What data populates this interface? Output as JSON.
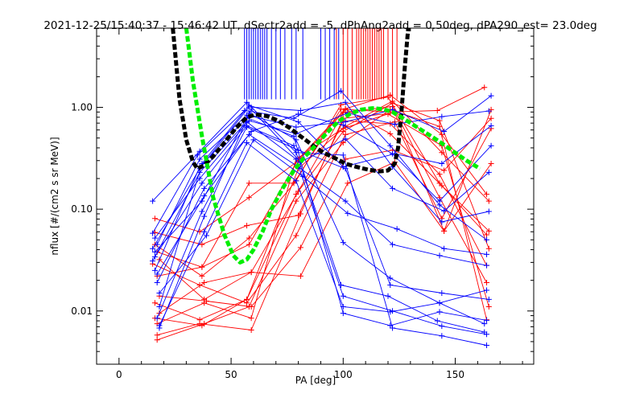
{
  "chart_data": {
    "type": "line",
    "title": "2021-12-25/15:40:37 - 15:46:42 UT, dSectr2add = -5, dPhAng2add = 0.50deg, dPA290_est=  23.0deg",
    "xlabel": "PA [deg]",
    "ylabel": "nflux [#/(cm2 s sr MeV)]",
    "xlim": [
      -10,
      185
    ],
    "ylim": [
      0.003,
      6
    ],
    "yscale": "log",
    "xticks": [
      0,
      50,
      100,
      150
    ],
    "xtick_labels": [
      "0",
      "50",
      "100",
      "150"
    ],
    "yticks": [
      0.01,
      0.1,
      1
    ],
    "ytick_labels": [
      "0.01",
      "0.10",
      "1.00"
    ],
    "colors": {
      "blue": "#0000ff",
      "red": "#ff0000",
      "fit_black": "#000000",
      "fit_green": "#00ee00"
    },
    "marker_lines": {
      "blue_x": [
        56,
        57,
        58,
        59,
        60,
        61,
        62,
        63,
        64,
        65,
        66,
        68,
        70,
        72,
        74,
        77,
        79,
        82,
        90,
        92,
        94,
        96,
        98
      ],
      "red_x": [
        97,
        100,
        102,
        104,
        106,
        107,
        108,
        109,
        110,
        111,
        112,
        113,
        114,
        115,
        116,
        117,
        118,
        120,
        122,
        124
      ],
      "y_from": 1.2,
      "y_to": 6
    },
    "fit_black": {
      "x": [
        24,
        27,
        30,
        33,
        35,
        38,
        42,
        47,
        52,
        57,
        61,
        66,
        71,
        76,
        81,
        86,
        91,
        96,
        101,
        106,
        111,
        116,
        120,
        123,
        124.5,
        126,
        127.5,
        129
      ],
      "y": [
        6,
        1.2,
        0.48,
        0.29,
        0.25,
        0.27,
        0.33,
        0.45,
        0.62,
        0.8,
        0.85,
        0.82,
        0.74,
        0.63,
        0.52,
        0.43,
        0.36,
        0.32,
        0.28,
        0.26,
        0.245,
        0.235,
        0.24,
        0.28,
        0.4,
        0.9,
        2.5,
        6
      ]
    },
    "fit_green": {
      "x": [
        30,
        33,
        37,
        42,
        47,
        51,
        54,
        57,
        60,
        64,
        68,
        73,
        78,
        83,
        88,
        93,
        98,
        103,
        108,
        113,
        118,
        122,
        126,
        131,
        137,
        143,
        149,
        155,
        161
      ],
      "y": [
        6,
        1.8,
        0.52,
        0.13,
        0.056,
        0.035,
        0.03,
        0.032,
        0.04,
        0.06,
        0.1,
        0.16,
        0.24,
        0.33,
        0.43,
        0.57,
        0.73,
        0.86,
        0.95,
        0.98,
        0.96,
        0.9,
        0.8,
        0.68,
        0.56,
        0.46,
        0.37,
        0.3,
        0.25
      ]
    },
    "blue_series": [
      {
        "x": [
          15,
          36,
          57,
          79,
          100,
          122,
          144,
          164
        ],
        "y": [
          0.12,
          0.37,
          1.12,
          0.36,
          0.34,
          0.0068,
          0.0057,
          0.0046
        ]
      },
      {
        "x": [
          15,
          36,
          57,
          79,
          100,
          122,
          144,
          164
        ],
        "y": [
          0.031,
          0.23,
          0.72,
          0.31,
          0.014,
          0.01,
          0.0071,
          0.0059
        ]
      },
      {
        "x": [
          16,
          37,
          58,
          79,
          100,
          121,
          143,
          163
        ],
        "y": [
          0.038,
          0.12,
          0.88,
          0.48,
          0.047,
          0.021,
          0.012,
          0.0075
        ]
      },
      {
        "x": [
          16,
          36,
          57,
          78,
          100,
          121,
          143,
          164
        ],
        "y": [
          0.025,
          0.26,
          0.79,
          0.52,
          0.0095,
          0.0072,
          0.0098,
          0.0081
        ]
      },
      {
        "x": [
          17,
          38,
          58,
          80,
          101,
          122,
          143,
          164
        ],
        "y": [
          0.019,
          0.16,
          0.54,
          0.26,
          0.12,
          0.045,
          0.035,
          0.028
        ]
      },
      {
        "x": [
          17,
          37,
          57,
          80,
          101,
          121,
          144,
          165
        ],
        "y": [
          0.0085,
          0.095,
          0.64,
          0.38,
          0.25,
          0.018,
          0.015,
          0.013
        ]
      },
      {
        "x": [
          18,
          38,
          59,
          81,
          101,
          122,
          145,
          165
        ],
        "y": [
          0.0068,
          0.085,
          0.96,
          0.29,
          0.49,
          0.16,
          0.096,
          0.23
        ]
      },
      {
        "x": [
          18,
          37,
          58,
          80,
          100,
          123,
          144,
          166
        ],
        "y": [
          0.011,
          0.28,
          1.05,
          0.72,
          0.26,
          0.35,
          0.28,
          0.66
        ]
      },
      {
        "x": [
          17,
          36,
          57,
          79,
          101,
          122,
          145,
          166
        ],
        "y": [
          0.045,
          0.31,
          0.84,
          0.64,
          0.72,
          0.95,
          0.58,
          1.3
        ]
      },
      {
        "x": [
          16,
          36,
          58,
          79,
          102,
          123,
          144,
          165
        ],
        "y": [
          0.052,
          0.2,
          0.74,
          0.55,
          0.88,
          0.68,
          0.81,
          0.92
        ]
      },
      {
        "x": [
          15,
          35,
          56,
          78,
          99,
          121,
          143,
          164
        ],
        "y": [
          0.058,
          0.34,
          0.93,
          0.78,
          1.45,
          0.42,
          0.11,
          0.05
        ]
      },
      {
        "x": [
          18,
          39,
          60,
          82,
          102,
          124,
          145,
          164
        ],
        "y": [
          0.015,
          0.055,
          0.48,
          0.21,
          0.091,
          0.064,
          0.041,
          0.036
        ]
      },
      {
        "x": [
          16,
          37,
          57,
          78,
          99,
          120,
          142,
          163
        ],
        "y": [
          0.034,
          0.18,
          0.66,
          0.42,
          0.018,
          0.014,
          0.008,
          0.0062
        ]
      },
      {
        "x": [
          17,
          38,
          59,
          80,
          100,
          122,
          143,
          166
        ],
        "y": [
          0.023,
          0.135,
          0.58,
          0.86,
          0.67,
          0.35,
          0.12,
          0.42
        ]
      },
      {
        "x": [
          15,
          36,
          58,
          81,
          101,
          122,
          144,
          165
        ],
        "y": [
          0.041,
          0.25,
          1.01,
          0.93,
          1.12,
          0.26,
          0.075,
          0.095
        ]
      },
      {
        "x": [
          18,
          38,
          57,
          79,
          100,
          121,
          143,
          164
        ],
        "y": [
          0.0072,
          0.06,
          0.45,
          0.19,
          0.011,
          0.0098,
          0.012,
          0.016
        ]
      }
    ],
    "red_series": [
      {
        "x": [
          17,
          38,
          58,
          79,
          100,
          121,
          143,
          164
        ],
        "y": [
          0.0052,
          0.0075,
          0.011,
          0.12,
          0.45,
          0.95,
          0.65,
          0.0082
        ]
      },
      {
        "x": [
          16,
          37,
          57,
          80,
          101,
          122,
          144,
          165
        ],
        "y": [
          0.0085,
          0.0072,
          0.013,
          0.25,
          0.65,
          1.15,
          0.36,
          0.12
        ]
      },
      {
        "x": [
          17,
          36,
          59,
          81,
          100,
          123,
          145,
          166
        ],
        "y": [
          0.0058,
          0.0075,
          0.0065,
          0.09,
          0.78,
          0.88,
          0.061,
          0.95
        ]
      },
      {
        "x": [
          16,
          37,
          58,
          79,
          99,
          120,
          143,
          164
        ],
        "y": [
          0.045,
          0.022,
          0.052,
          0.19,
          1.06,
          1.26,
          0.18,
          0.056
        ]
      },
      {
        "x": [
          18,
          38,
          59,
          80,
          101,
          121,
          144,
          165
        ],
        "y": [
          0.032,
          0.013,
          0.024,
          0.15,
          0.96,
          0.55,
          0.17,
          0.061
        ]
      },
      {
        "x": [
          17,
          37,
          58,
          78,
          99,
          121,
          142,
          163
        ],
        "y": [
          0.022,
          0.027,
          0.18,
          0.18,
          0.96,
          0.9,
          0.93,
          1.57
        ]
      },
      {
        "x": [
          16,
          36,
          58,
          80,
          100,
          122,
          143,
          164
        ],
        "y": [
          0.081,
          0.06,
          0.13,
          0.3,
          0.89,
          1.02,
          0.13,
          0.019
        ]
      },
      {
        "x": [
          18,
          39,
          59,
          81,
          101,
          122,
          145,
          166
        ],
        "y": [
          0.014,
          0.0125,
          0.011,
          0.042,
          0.31,
          0.38,
          0.24,
          0.78
        ]
      },
      {
        "x": [
          17,
          38,
          59,
          79,
          100,
          120,
          144,
          165
        ],
        "y": [
          0.0075,
          0.012,
          0.0085,
          0.31,
          0.62,
          0.86,
          0.42,
          0.011
        ]
      },
      {
        "x": [
          16,
          37,
          57,
          80,
          100,
          121,
          143,
          164
        ],
        "y": [
          0.059,
          0.045,
          0.069,
          0.087,
          0.74,
          0.69,
          0.22,
          0.028
        ]
      },
      {
        "x": [
          15,
          36,
          57,
          79,
          101,
          123,
          144,
          166
        ],
        "y": [
          0.029,
          0.018,
          0.012,
          0.055,
          0.54,
          0.72,
          0.081,
          0.62
        ]
      },
      {
        "x": [
          18,
          38,
          59,
          81,
          102,
          123,
          145,
          166
        ],
        "y": [
          0.0095,
          0.019,
          0.024,
          0.022,
          0.18,
          0.29,
          0.061,
          0.28
        ]
      },
      {
        "x": [
          17,
          37,
          58,
          80,
          101,
          121,
          144,
          164
        ],
        "y": [
          0.038,
          0.027,
          0.045,
          0.31,
          0.97,
          1.32,
          0.54,
          0.14
        ]
      },
      {
        "x": [
          16,
          36,
          57,
          79,
          100,
          122,
          143,
          165
        ],
        "y": [
          0.012,
          0.0082,
          0.013,
          0.14,
          0.58,
          1.1,
          0.74,
          0.041
        ]
      }
    ]
  }
}
